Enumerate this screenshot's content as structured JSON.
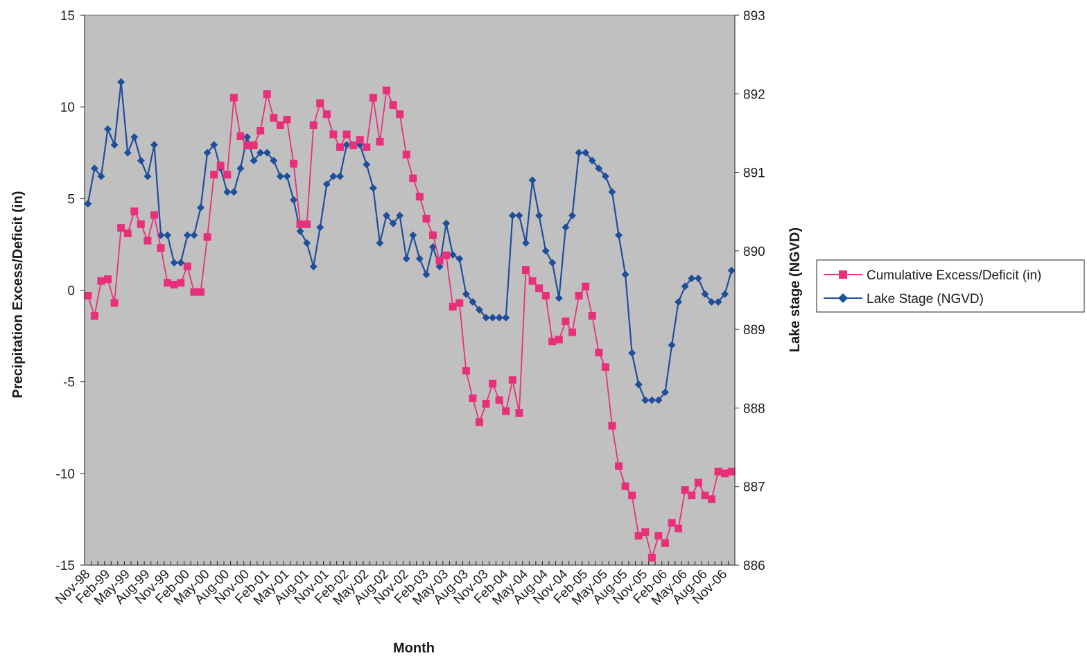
{
  "chart_data": {
    "type": "line",
    "title": "",
    "xlabel": "Month",
    "ylabel": "Precipitation Excess/Deficit (in)",
    "y2label": "Lake stage (NGVD)",
    "ylim": [
      -15,
      15
    ],
    "y2lim": [
      886,
      893
    ],
    "yticks": [
      -15,
      -10,
      -5,
      0,
      5,
      10,
      15
    ],
    "y2ticks": [
      886,
      887,
      888,
      889,
      890,
      891,
      892,
      893
    ],
    "xtick_labels": [
      "Nov-98",
      "Feb-99",
      "May-99",
      "Aug-99",
      "Nov-99",
      "Feb-00",
      "May-00",
      "Aug-00",
      "Nov-00",
      "Feb-01",
      "May-01",
      "Aug-01",
      "Nov-01",
      "Feb-02",
      "May-02",
      "Aug-02",
      "Nov-02",
      "Feb-03",
      "May-03",
      "Aug-03",
      "Nov-03",
      "Feb-04",
      "May-04",
      "Aug-04",
      "Nov-04",
      "Feb-05",
      "May-05",
      "Aug-05",
      "Nov-05",
      "Feb-06",
      "May-06",
      "Aug-06",
      "Nov-06"
    ],
    "grid": false,
    "legend_position": "right",
    "plot_background": "#c0c0c0",
    "series": [
      {
        "name": "Cumulative Excess/Deficit (in)",
        "axis": "left",
        "color": "#e8307a",
        "marker": "square",
        "values": [
          -0.3,
          -1.4,
          0.5,
          0.6,
          -0.7,
          3.4,
          3.1,
          4.3,
          3.6,
          2.7,
          4.1,
          2.3,
          0.4,
          0.3,
          0.4,
          1.3,
          -0.1,
          -0.1,
          2.9,
          6.3,
          6.8,
          6.3,
          10.5,
          8.4,
          7.9,
          7.9,
          8.7,
          10.7,
          9.4,
          9.0,
          9.3,
          6.9,
          3.6,
          3.6,
          9.0,
          10.2,
          9.6,
          8.5,
          7.8,
          8.5,
          7.9,
          8.2,
          7.8,
          10.5,
          8.1,
          10.9,
          10.1,
          9.6,
          7.4,
          6.1,
          5.1,
          3.9,
          3.0,
          1.6,
          1.9,
          -0.9,
          -0.7,
          -4.4,
          -5.9,
          -7.2,
          -6.2,
          -5.1,
          -6.0,
          -6.6,
          -4.9,
          -6.7,
          1.1,
          0.5,
          0.1,
          -0.3,
          -2.8,
          -2.7,
          -1.7,
          -2.3,
          -0.3,
          0.2,
          -1.4,
          -3.4,
          -4.2,
          -7.4,
          -9.6,
          -10.7,
          -11.2,
          -13.4,
          -13.2,
          -14.6,
          -13.4,
          -13.8,
          -12.7,
          -13.0,
          -10.9,
          -11.2,
          -10.5,
          -11.2,
          -11.4,
          -9.9,
          -10.0,
          -9.9
        ]
      },
      {
        "name": "Lake Stage (NGVD)",
        "axis": "right",
        "color": "#1f4e9a",
        "marker": "diamond",
        "values": [
          890.6,
          891.05,
          890.95,
          891.55,
          891.35,
          892.15,
          891.25,
          891.45,
          891.15,
          890.95,
          891.35,
          890.2,
          890.2,
          889.85,
          889.85,
          890.2,
          890.2,
          890.55,
          891.25,
          891.35,
          891.05,
          890.75,
          890.75,
          891.05,
          891.45,
          891.15,
          891.25,
          891.25,
          891.15,
          890.95,
          890.95,
          890.65,
          890.25,
          890.1,
          889.8,
          890.3,
          890.85,
          890.95,
          890.95,
          891.35,
          891.35,
          891.35,
          891.1,
          890.8,
          890.1,
          890.45,
          890.35,
          890.45,
          889.9,
          890.2,
          889.9,
          889.7,
          890.05,
          889.8,
          890.35,
          889.95,
          889.9,
          889.45,
          889.35,
          889.25,
          889.15,
          889.15,
          889.15,
          889.15,
          890.45,
          890.45,
          890.1,
          890.9,
          890.45,
          890.0,
          889.85,
          889.4,
          890.3,
          890.45,
          891.25,
          891.25,
          891.15,
          891.05,
          890.95,
          890.75,
          890.2,
          889.7,
          888.7,
          888.3,
          888.1,
          888.1,
          888.1,
          888.2,
          888.8,
          889.35,
          889.55,
          889.65,
          889.65,
          889.45,
          889.35,
          889.35,
          889.45,
          889.75
        ]
      }
    ]
  }
}
